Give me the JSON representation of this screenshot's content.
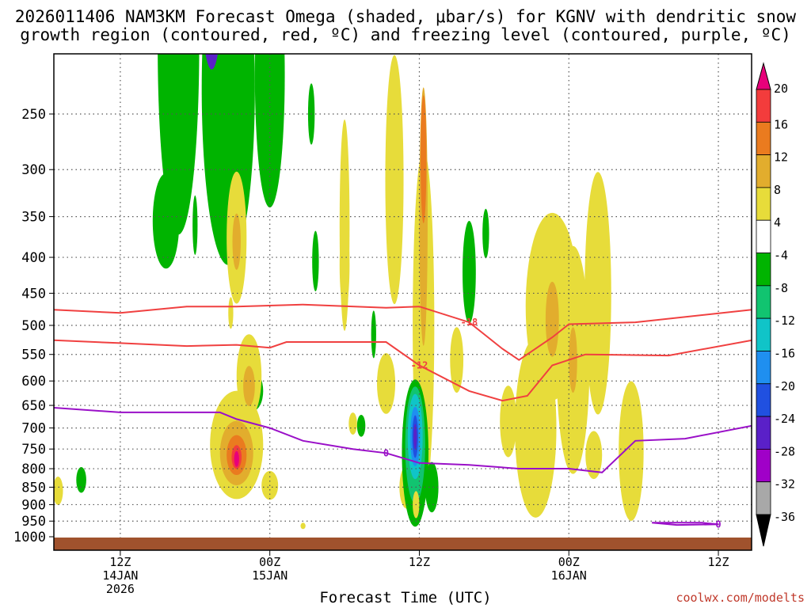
{
  "chart_data": {
    "type": "heatmap",
    "title_line1": "2026011406 NAM3KM Forecast Omega (shaded, μbar/s) for KGNV with dendritic snow",
    "title_line2": "growth region (contoured, red, ºC) and freezing level (contoured, purple, ºC)",
    "xlabel": "Forecast Time (UTC)",
    "credit": "coolwx.com/modelts",
    "x_range_hours": [
      0,
      84
    ],
    "x_ticks": [
      {
        "hour": 8,
        "lines": [
          "12Z",
          "14JAN",
          "2026"
        ]
      },
      {
        "hour": 26,
        "lines": [
          "00Z",
          "15JAN"
        ]
      },
      {
        "hour": 44,
        "lines": [
          "12Z"
        ]
      },
      {
        "hour": 62,
        "lines": [
          "00Z",
          "16JAN"
        ]
      },
      {
        "hour": 80,
        "lines": [
          "12Z"
        ]
      }
    ],
    "y_axis_pressure_ticks": [
      250,
      300,
      350,
      400,
      450,
      500,
      550,
      600,
      650,
      700,
      750,
      800,
      850,
      900,
      950,
      1000
    ],
    "y_range_hpa": [
      200,
      1000
    ],
    "colorbar": {
      "label_values": [
        20,
        16,
        12,
        8,
        4,
        -4,
        -8,
        -12,
        -16,
        -20,
        -24,
        -28,
        -32,
        -36
      ],
      "colors": [
        "#e8007a",
        "#f33c3c",
        "#ea7b1f",
        "#e2ad2d",
        "#e7dc3a",
        "#ffffff",
        "#00b400",
        "#11c470",
        "#10c4c8",
        "#1f8ff0",
        "#2050e0",
        "#5a20c8",
        "#a000c8",
        "#a8a8a8",
        "#000000"
      ]
    },
    "contours_red": [
      {
        "label": "-18",
        "series": [
          [
            0,
            475
          ],
          [
            8,
            480
          ],
          [
            16,
            470
          ],
          [
            22,
            470
          ],
          [
            30,
            467
          ],
          [
            40,
            472
          ],
          [
            44,
            470
          ],
          [
            50,
            495
          ],
          [
            54,
            540
          ],
          [
            56,
            560
          ],
          [
            60,
            520
          ],
          [
            62,
            498
          ],
          [
            70,
            495
          ],
          [
            84,
            475
          ]
        ]
      },
      {
        "label": "-12",
        "series": [
          [
            0,
            525
          ],
          [
            8,
            530
          ],
          [
            16,
            535
          ],
          [
            22,
            533
          ],
          [
            26,
            538
          ],
          [
            28,
            528
          ],
          [
            40,
            528
          ],
          [
            44,
            570
          ],
          [
            50,
            620
          ],
          [
            54,
            640
          ],
          [
            57,
            630
          ],
          [
            60,
            570
          ],
          [
            64,
            550
          ],
          [
            74,
            552
          ],
          [
            84,
            525
          ]
        ]
      }
    ],
    "contours_purple": [
      {
        "label": "0",
        "series": [
          [
            0,
            655
          ],
          [
            8,
            665
          ],
          [
            14,
            665
          ],
          [
            20,
            665
          ],
          [
            22,
            680
          ],
          [
            26,
            700
          ],
          [
            30,
            730
          ],
          [
            36,
            750
          ],
          [
            40,
            760
          ],
          [
            44,
            785
          ],
          [
            50,
            790
          ],
          [
            56,
            800
          ],
          [
            62,
            800
          ],
          [
            66,
            810
          ],
          [
            70,
            730
          ],
          [
            76,
            725
          ],
          [
            84,
            695
          ]
        ]
      },
      {
        "label": "0",
        "series": [
          [
            72,
            955
          ],
          [
            78,
            955
          ],
          [
            80,
            960
          ],
          [
            75,
            962
          ],
          [
            72,
            955
          ]
        ]
      }
    ]
  }
}
